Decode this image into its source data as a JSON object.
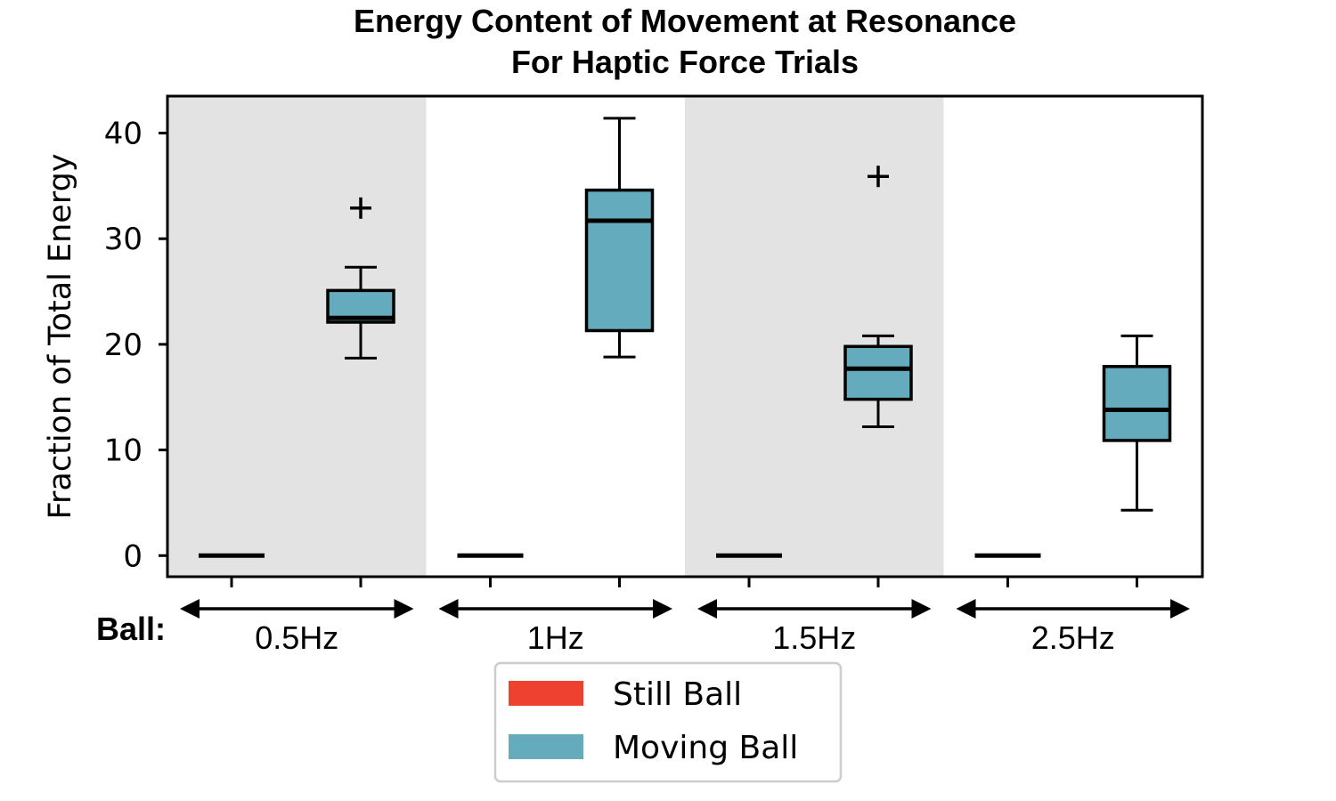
{
  "chart_data": {
    "type": "box",
    "title": [
      "Energy Content of Movement at Resonance",
      "For Haptic Force Trials"
    ],
    "ylabel": "Fraction of Total Energy",
    "ylim": [
      -2,
      43.5
    ],
    "yticks": [
      0,
      10,
      20,
      30,
      40
    ],
    "group_prefix": "Ball:",
    "groups": [
      "0.5Hz",
      "1Hz",
      "1.5Hz",
      "2.5Hz"
    ],
    "shaded_groups": [
      true,
      false,
      true,
      false
    ],
    "shade_color": "#e3e3e3",
    "series": [
      {
        "name": "Still Ball",
        "color": "#ef4130",
        "boxes": [
          {
            "min": 0,
            "q1": 0,
            "median": 0,
            "q3": 0,
            "max": 0,
            "outliers": []
          },
          {
            "min": 0,
            "q1": 0,
            "median": 0,
            "q3": 0,
            "max": 0,
            "outliers": []
          },
          {
            "min": 0,
            "q1": 0,
            "median": 0,
            "q3": 0,
            "max": 0,
            "outliers": []
          },
          {
            "min": 0,
            "q1": 0,
            "median": 0,
            "q3": 0,
            "max": 0,
            "outliers": []
          }
        ]
      },
      {
        "name": "Moving Ball",
        "color": "#64acbd",
        "boxes": [
          {
            "min": 18.7,
            "q1": 22.1,
            "median": 22.5,
            "q3": 25.1,
            "max": 27.3,
            "outliers": [
              32.9
            ]
          },
          {
            "min": 18.8,
            "q1": 21.3,
            "median": 31.7,
            "q3": 34.6,
            "max": 41.4,
            "outliers": []
          },
          {
            "min": 12.2,
            "q1": 14.8,
            "median": 17.7,
            "q3": 19.8,
            "max": 20.8,
            "outliers": [
              35.9
            ]
          },
          {
            "min": 4.3,
            "q1": 10.9,
            "median": 13.8,
            "q3": 17.9,
            "max": 20.8,
            "outliers": []
          }
        ]
      }
    ],
    "legend": {
      "placement": "bottom-center",
      "entries": [
        "Still Ball",
        "Moving Ball"
      ]
    }
  }
}
